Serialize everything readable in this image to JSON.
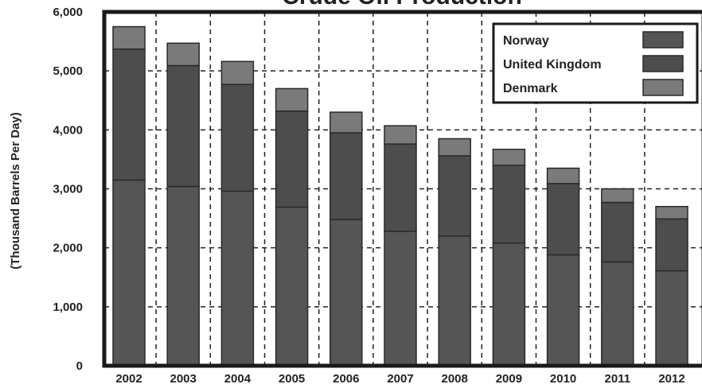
{
  "chart_data": {
    "type": "bar",
    "stacked": true,
    "title": "Crude Oil Production",
    "ylabel": "(Thousand Barrels Per Day)",
    "xlabel": "",
    "categories": [
      "2002",
      "2003",
      "2004",
      "2005",
      "2006",
      "2007",
      "2008",
      "2009",
      "2010",
      "2011",
      "2012"
    ],
    "series": [
      {
        "name": "Norway",
        "color": "#555555",
        "values": [
          3150,
          3040,
          2960,
          2690,
          2480,
          2280,
          2200,
          2080,
          1880,
          1760,
          1610
        ]
      },
      {
        "name": "United Kingdom",
        "color": "#4d4d4d",
        "values": [
          2220,
          2050,
          1810,
          1630,
          1470,
          1480,
          1360,
          1320,
          1210,
          1010,
          880
        ]
      },
      {
        "name": "Denmark",
        "color": "#7a7a7a",
        "values": [
          380,
          380,
          390,
          380,
          350,
          310,
          290,
          270,
          260,
          230,
          210
        ]
      }
    ],
    "ylim": [
      0,
      6000
    ],
    "yticks": [
      "0",
      "1,000",
      "2,000",
      "3,000",
      "4,000",
      "5,000",
      "6,000"
    ],
    "grid": true,
    "legend_position": "top-right"
  }
}
